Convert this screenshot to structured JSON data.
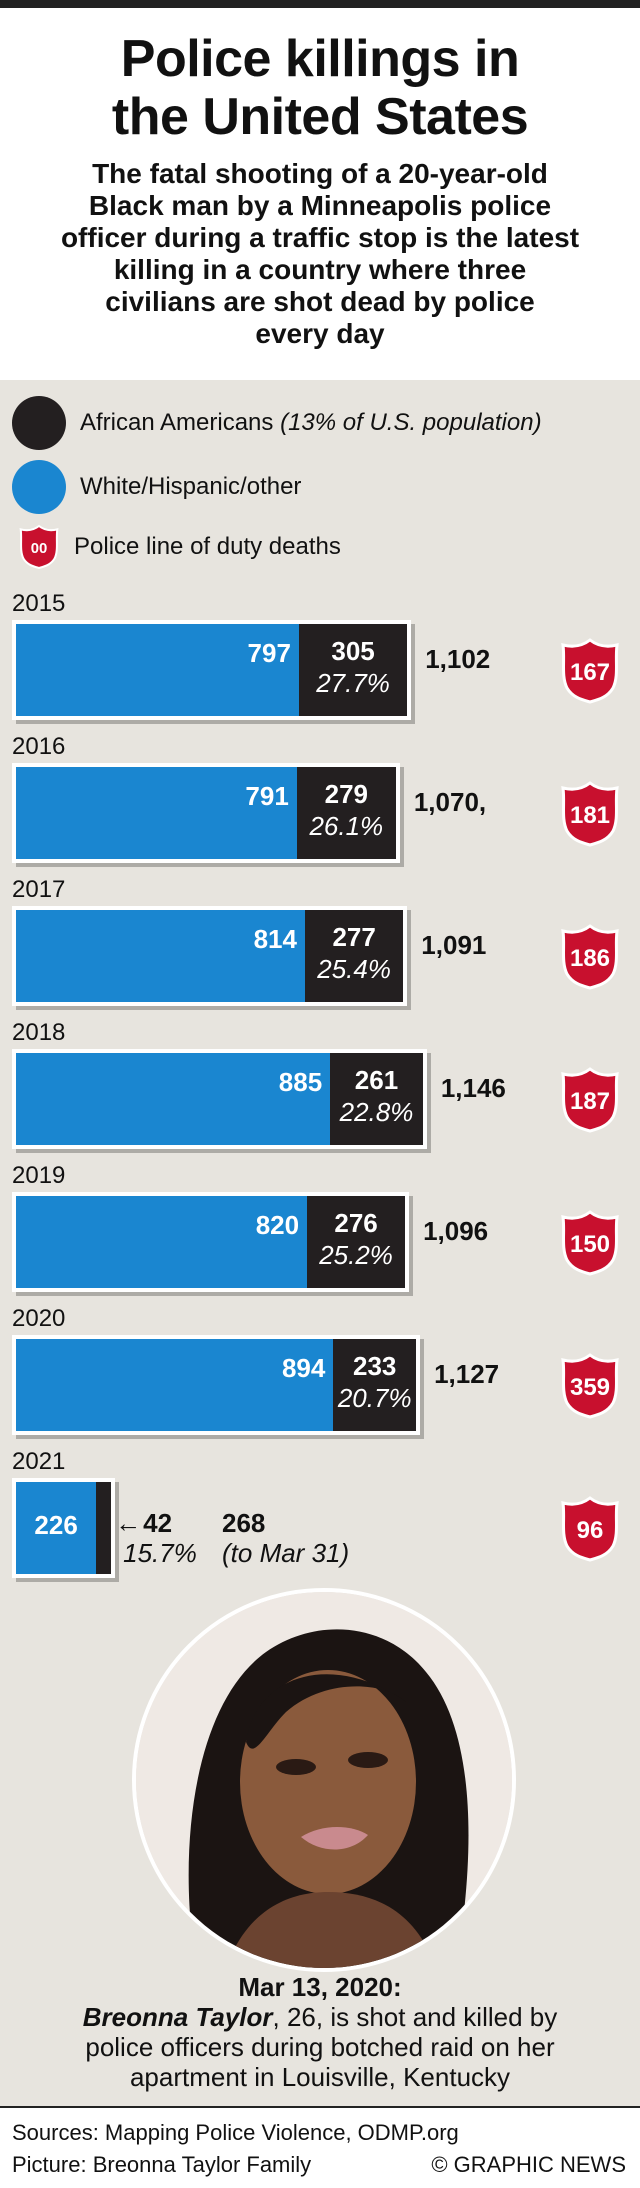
{
  "header": {
    "title_line1": "Police killings in",
    "title_line2": "the United States",
    "subtitle_lines": [
      "The fatal shooting of a 20-year-old",
      "Black man by a Minneapolis police",
      "officer during a traffic stop is the latest",
      "killing in a country where three",
      "civilians are shot dead by police",
      "every day"
    ]
  },
  "legend": {
    "african_americans": "African Americans",
    "african_americans_note": "(13% of U.S. population)",
    "white_hispanic": "White/Hispanic/other",
    "duty_deaths": "Police line of duty deaths",
    "shield_sample": "00"
  },
  "colors": {
    "blue": "#1a86d0",
    "black": "#231f20",
    "shield_red": "#c8102e",
    "background": "#e7e4de"
  },
  "chart_data": {
    "type": "bar",
    "stacked": true,
    "orientation": "horizontal",
    "categories": [
      "2015",
      "2016",
      "2017",
      "2018",
      "2019",
      "2020",
      "2021"
    ],
    "series": [
      {
        "name": "White/Hispanic/other",
        "values": [
          797,
          791,
          814,
          885,
          820,
          894,
          226
        ]
      },
      {
        "name": "African Americans",
        "values": [
          305,
          279,
          277,
          261,
          276,
          233,
          42
        ]
      }
    ],
    "black_percent_labels": [
      "27.7%",
      "26.1%",
      "25.4%",
      "22.8%",
      "25.2%",
      "20.7%",
      "15.7%"
    ],
    "total_labels": [
      "1,102",
      "1,070,",
      "1,091",
      "1,146",
      "1,096",
      "1,127",
      "268"
    ],
    "total_note_2021": "(to Mar 31)",
    "duty_deaths": [
      167,
      181,
      186,
      187,
      150,
      359,
      96
    ]
  },
  "photo": {
    "caption_date": "Mar 13, 2020:",
    "caption_name": "Breonna Taylor",
    "caption_line1_rest": ", 26, is shot and killed by",
    "caption_line2": "police officers during botched raid on her",
    "caption_line3": "apartment in Louisville, Kentucky"
  },
  "footer": {
    "sources": "Sources: Mapping Police Violence, ODMP.org",
    "picture": "Picture: Breonna Taylor Family",
    "credit": "© GRAPHIC NEWS"
  }
}
